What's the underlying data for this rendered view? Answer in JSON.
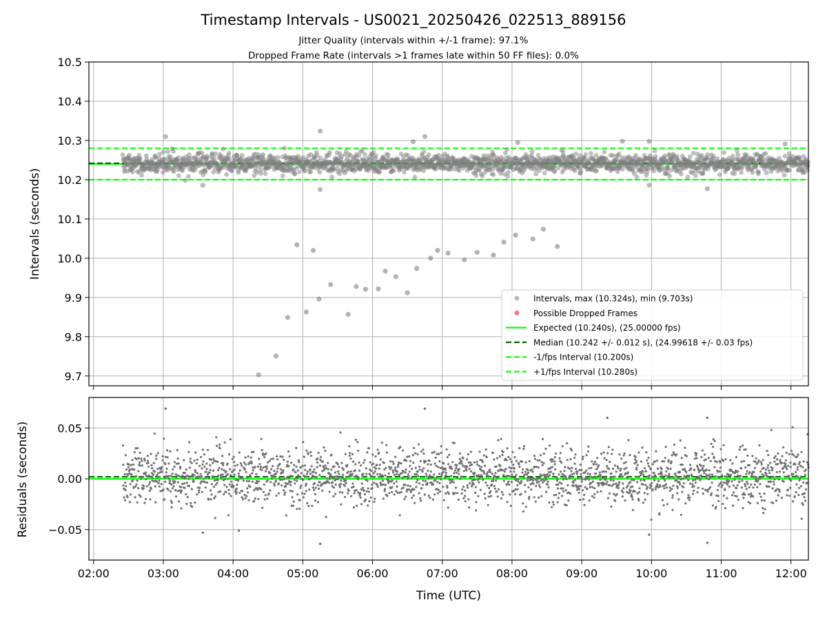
{
  "chart_data": [
    {
      "type": "scatter",
      "panel": "intervals",
      "title": "Timestamp Intervals - US0021_20250426_022513_889156",
      "subtitles": [
        "Jitter Quality (intervals within +/-1 frame): 97.1%",
        "Dropped Frame Rate (intervals >1 frames late within 50 FF files): 0.0%"
      ],
      "xlabel": "",
      "ylabel": "Intervals (seconds)",
      "xlim": [
        "01:56",
        "12:15"
      ],
      "ylim": [
        9.675,
        10.5
      ],
      "yticks": [
        9.7,
        9.8,
        9.9,
        10.0,
        10.1,
        10.2,
        10.3,
        10.4,
        10.5
      ],
      "ytick_labels": [
        "9.7",
        "9.8",
        "9.9",
        "10.0",
        "10.1",
        "10.2",
        "10.3",
        "10.4",
        "10.5"
      ],
      "grid": true,
      "legend_position": "lower-right",
      "reference_lines": [
        {
          "name": "Expected (10.240s), (25.00000 fps)",
          "y": 10.24,
          "style": "solid",
          "color": "#00ff00"
        },
        {
          "name": "Median (10.242 +/- 0.012 s), (24.99618 +/- 0.03 fps)",
          "y": 10.242,
          "style": "dashed",
          "color": "#006400"
        },
        {
          "name": "-1/fps Interval (10.200s)",
          "y": 10.2,
          "style": "dashed",
          "color": "#00ff00"
        },
        {
          "name": "+1/fps Interval (10.280s)",
          "y": 10.28,
          "style": "dashed",
          "color": "#00ff00"
        }
      ],
      "series": [
        {
          "name": "Intervals, max (10.324s), min (9.703s)",
          "color": "#808080",
          "summary": {
            "time_start": "02:25",
            "time_end": "12:15",
            "typical_center": 10.241,
            "typical_spread": 0.012,
            "max": 10.324,
            "min": 9.703
          },
          "notable_points": [
            {
              "x": "03:02",
              "y": 10.31
            },
            {
              "x": "05:15",
              "y": 10.324
            },
            {
              "x": "06:45",
              "y": 10.31
            },
            {
              "x": "03:34",
              "y": 10.186
            },
            {
              "x": "05:15",
              "y": 10.175
            },
            {
              "x": "10:48",
              "y": 10.177
            },
            {
              "x": "09:58",
              "y": 10.186
            },
            {
              "x": "06:35",
              "y": 10.297
            },
            {
              "x": "08:05",
              "y": 10.295
            },
            {
              "x": "09:35",
              "y": 10.298
            },
            {
              "x": "09:58",
              "y": 10.298
            },
            {
              "x": "11:55",
              "y": 10.291
            }
          ]
        },
        {
          "name": "Intervals (recovery ramp)",
          "color": "#808080",
          "points": [
            {
              "x": "04:22",
              "y": 9.703
            },
            {
              "x": "04:37",
              "y": 9.751
            },
            {
              "x": "04:47",
              "y": 9.849
            },
            {
              "x": "04:55",
              "y": 10.034
            },
            {
              "x": "05:03",
              "y": 9.863
            },
            {
              "x": "05:09",
              "y": 10.02
            },
            {
              "x": "05:14",
              "y": 9.896
            },
            {
              "x": "05:24",
              "y": 9.933
            },
            {
              "x": "05:39",
              "y": 9.857
            },
            {
              "x": "05:46",
              "y": 9.928
            },
            {
              "x": "05:54",
              "y": 9.921
            },
            {
              "x": "06:05",
              "y": 9.922
            },
            {
              "x": "06:11",
              "y": 9.967
            },
            {
              "x": "06:20",
              "y": 9.953
            },
            {
              "x": "06:30",
              "y": 9.912
            },
            {
              "x": "06:38",
              "y": 9.974
            },
            {
              "x": "06:50",
              "y": 10.0
            },
            {
              "x": "06:56",
              "y": 10.02
            },
            {
              "x": "07:05",
              "y": 10.013
            },
            {
              "x": "07:19",
              "y": 9.996
            },
            {
              "x": "07:30",
              "y": 10.015
            },
            {
              "x": "07:44",
              "y": 10.008
            },
            {
              "x": "07:53",
              "y": 10.041
            },
            {
              "x": "08:03",
              "y": 10.059
            },
            {
              "x": "08:18",
              "y": 10.049
            },
            {
              "x": "08:27",
              "y": 10.074
            },
            {
              "x": "08:39",
              "y": 10.03
            }
          ]
        },
        {
          "name": "Possible Dropped Frames",
          "color": "#ff0000",
          "points": []
        }
      ],
      "legend": [
        {
          "label": "Intervals, max (10.324s), min (9.703s)",
          "marker": "dot",
          "color": "#808080"
        },
        {
          "label": "Possible Dropped Frames",
          "marker": "dot",
          "color": "#ff0000"
        },
        {
          "label": "Expected (10.240s), (25.00000 fps)",
          "marker": "solid",
          "color": "#00ff00"
        },
        {
          "label": "Median (10.242 +/- 0.012 s), (24.99618 +/- 0.03 fps)",
          "marker": "dashed",
          "color": "#006400"
        },
        {
          "label": "-1/fps Interval (10.200s)",
          "marker": "dashed",
          "color": "#00ff00"
        },
        {
          "label": "+1/fps Interval (10.280s)",
          "marker": "dashed",
          "color": "#00ff00"
        }
      ]
    },
    {
      "type": "scatter",
      "panel": "residuals",
      "xlabel": "Time (UTC)",
      "ylabel": "Residuals (seconds)",
      "xlim": [
        "01:56",
        "12:15"
      ],
      "ylim": [
        -0.08,
        0.08
      ],
      "yticks": [
        -0.05,
        0.0,
        0.05
      ],
      "ytick_labels": [
        "−0.05",
        "0.00",
        "0.05"
      ],
      "xticks": [
        "02:00",
        "03:00",
        "04:00",
        "05:00",
        "06:00",
        "07:00",
        "08:00",
        "09:00",
        "10:00",
        "11:00",
        "12:00"
      ],
      "grid": true,
      "reference_lines": [
        {
          "y": 0.0,
          "style": "solid",
          "color": "#00ff00"
        },
        {
          "y": 0.002,
          "style": "dashed",
          "color": "#006400"
        }
      ],
      "series": [
        {
          "color": "#808080",
          "summary": {
            "time_start": "02:25",
            "time_end": "12:15",
            "typical_center": 0.002,
            "typical_spread": 0.014,
            "max": 0.069,
            "min": -0.064
          },
          "notable_points": [
            {
              "x": "03:02",
              "y": 0.069
            },
            {
              "x": "06:45",
              "y": 0.069
            },
            {
              "x": "05:15",
              "y": -0.064
            },
            {
              "x": "10:48",
              "y": -0.063
            },
            {
              "x": "04:05",
              "y": -0.051
            },
            {
              "x": "09:58",
              "y": -0.055
            },
            {
              "x": "03:34",
              "y": -0.053
            },
            {
              "x": "10:48",
              "y": 0.06
            },
            {
              "x": "09:22",
              "y": 0.06
            }
          ]
        }
      ]
    }
  ]
}
